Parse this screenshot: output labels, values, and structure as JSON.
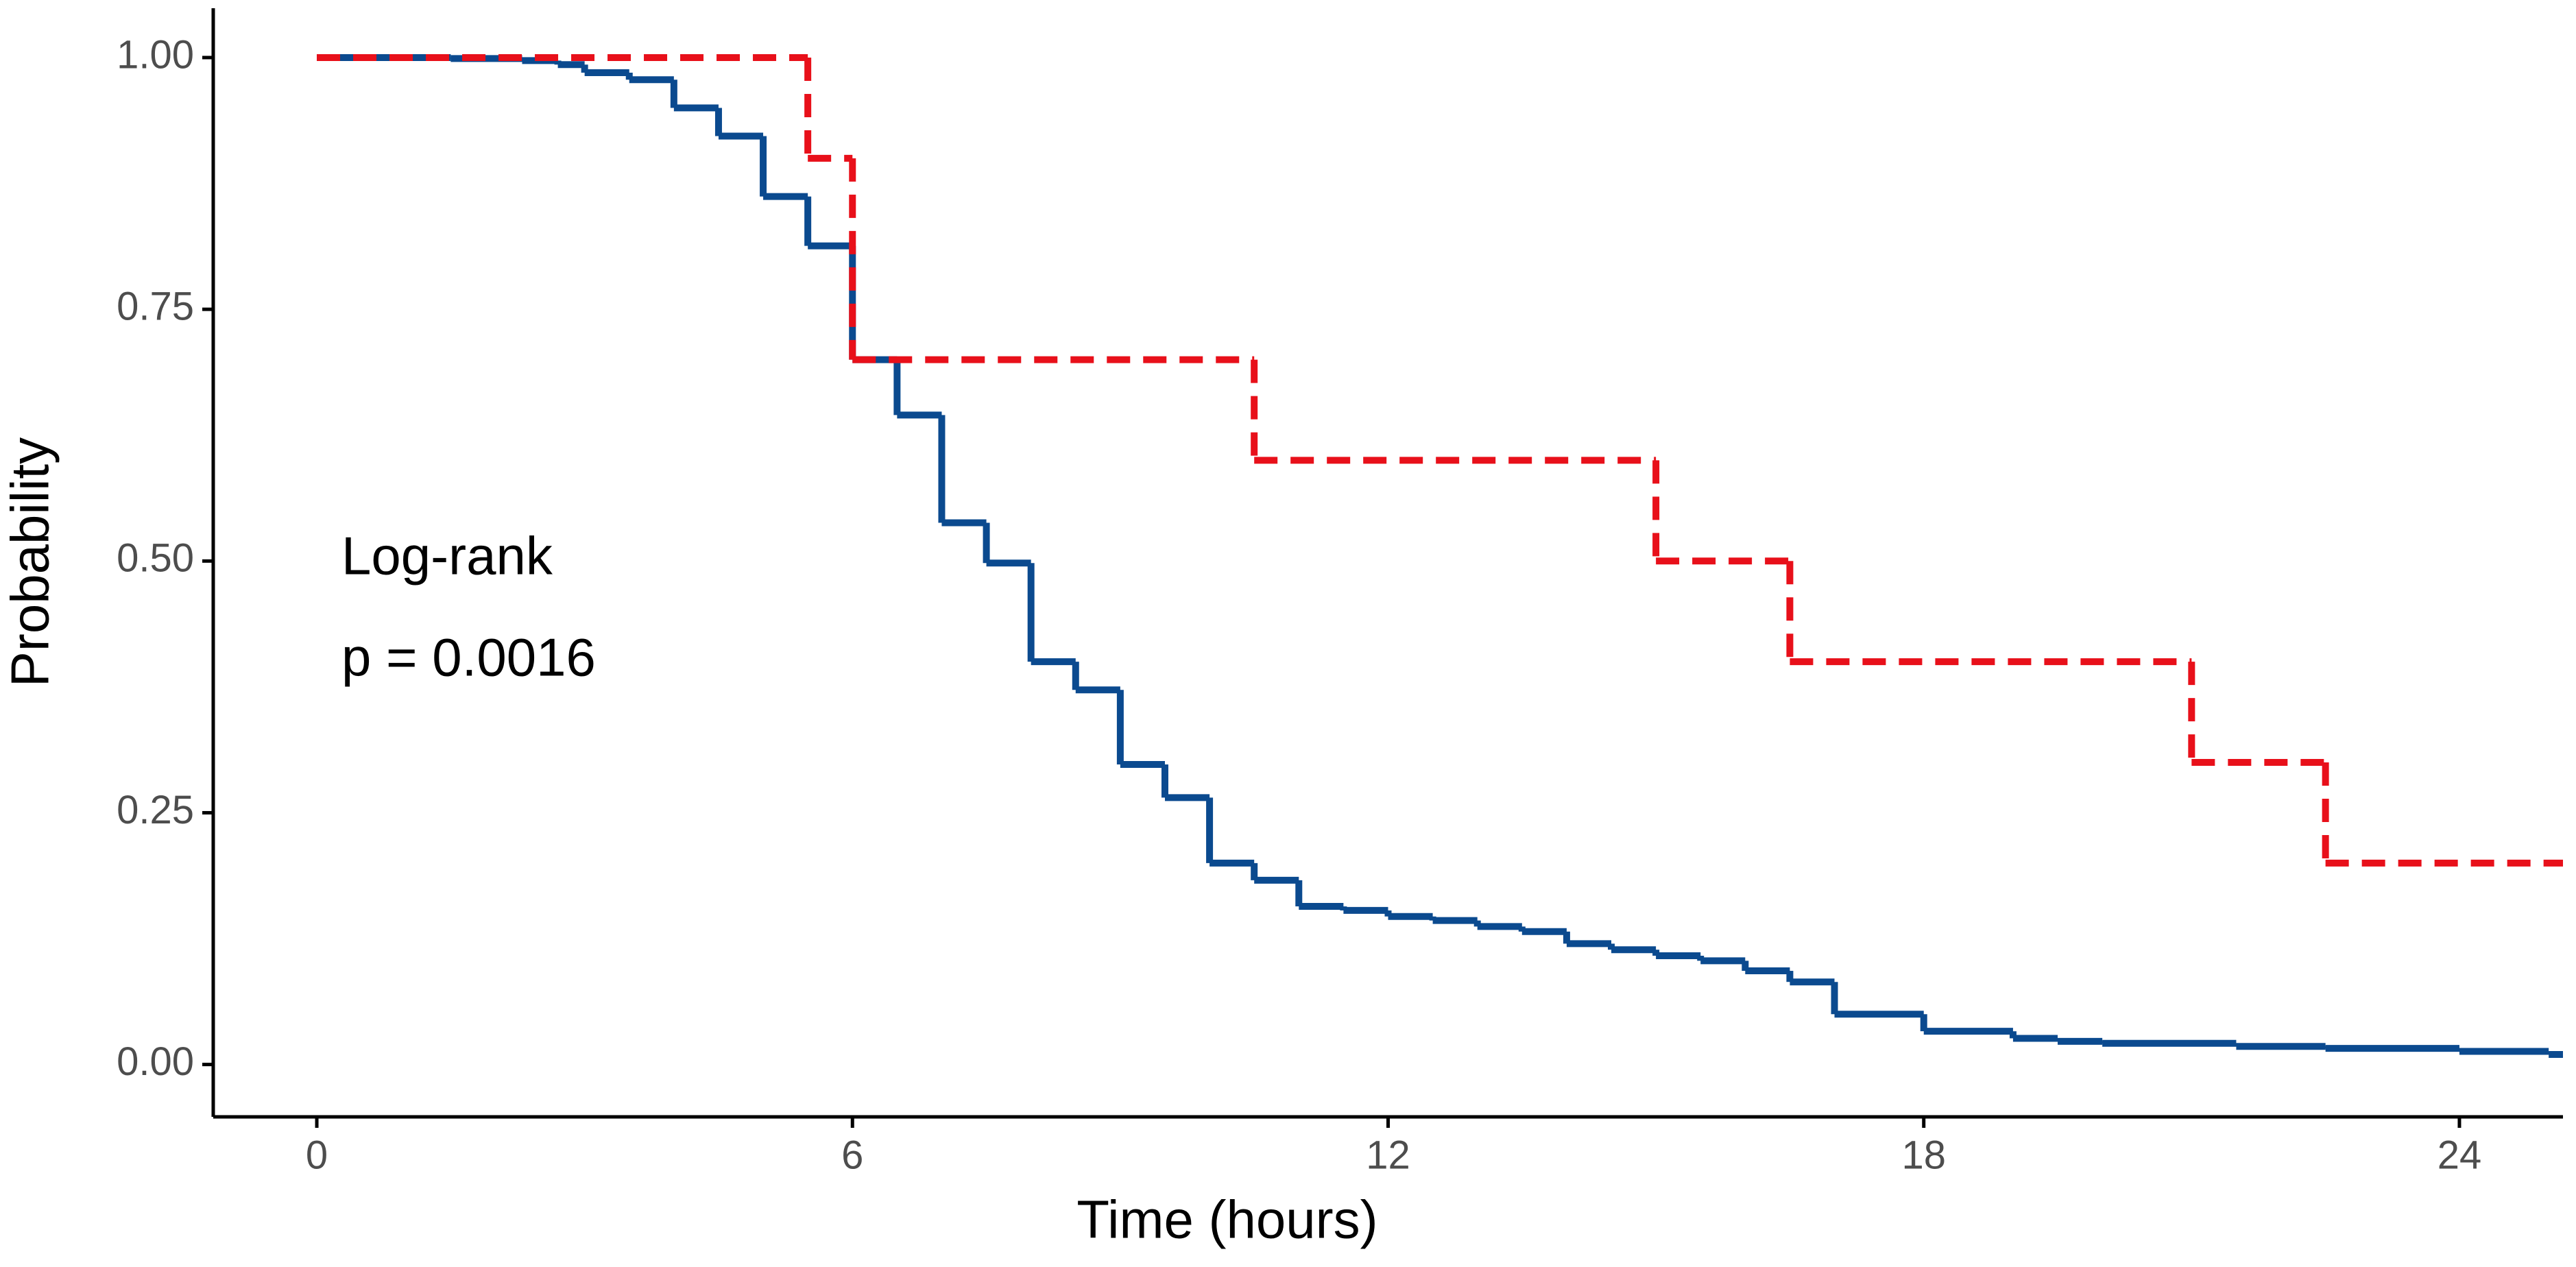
{
  "chart_data": {
    "type": "line",
    "step": "post",
    "x_label": "Time (hours)",
    "y_label": "Probability",
    "annotations": [
      "Log-rank",
      "p = 0.0016"
    ],
    "xlim": [
      -1.16,
      25.16
    ],
    "ylim": [
      -0.052,
      1.049
    ],
    "xticks": [
      0,
      6,
      12,
      18,
      24
    ],
    "yticks": [
      {
        "value": 0,
        "label": "0.00"
      },
      {
        "value": 0.25,
        "label": "0.25"
      },
      {
        "value": 0.5,
        "label": "0.50"
      },
      {
        "value": 0.75,
        "label": "0.75"
      },
      {
        "value": 1,
        "label": "1.00"
      }
    ],
    "grid": false,
    "series": [
      {
        "color": "#0b4a8f",
        "linestyle": "solid",
        "x": [
          0,
          1.5,
          2.3,
          2.7,
          3.0,
          3.5,
          4.0,
          4.5,
          5.0,
          5.5,
          6.0,
          6.5,
          7.0,
          7.5,
          8.0,
          8.5,
          9.0,
          9.5,
          10.0,
          10.5,
          11.0,
          11.5,
          12.0,
          12.5,
          13.0,
          13.5,
          14.0,
          14.5,
          15.0,
          15.5,
          16.0,
          16.5,
          17.0,
          18.0,
          19.0,
          19.5,
          20.0,
          21.5,
          22.5,
          24.0,
          25.0,
          25.16
        ],
        "values": [
          1.0,
          0.999,
          0.997,
          0.993,
          0.985,
          0.978,
          0.95,
          0.922,
          0.862,
          0.813,
          0.7,
          0.645,
          0.538,
          0.498,
          0.4,
          0.372,
          0.298,
          0.265,
          0.2,
          0.183,
          0.157,
          0.153,
          0.147,
          0.143,
          0.137,
          0.132,
          0.12,
          0.114,
          0.108,
          0.103,
          0.093,
          0.082,
          0.05,
          0.033,
          0.026,
          0.023,
          0.021,
          0.018,
          0.016,
          0.013,
          0.01,
          0.01
        ]
      },
      {
        "color": "#e8101a",
        "linestyle": "dashed",
        "x": [
          0,
          5.5,
          6.0,
          10.5,
          15.0,
          16.5,
          21.0,
          22.5,
          25.16
        ],
        "values": [
          1.0,
          0.9,
          0.7,
          0.6,
          0.5,
          0.4,
          0.3,
          0.2,
          0.2
        ]
      }
    ]
  }
}
